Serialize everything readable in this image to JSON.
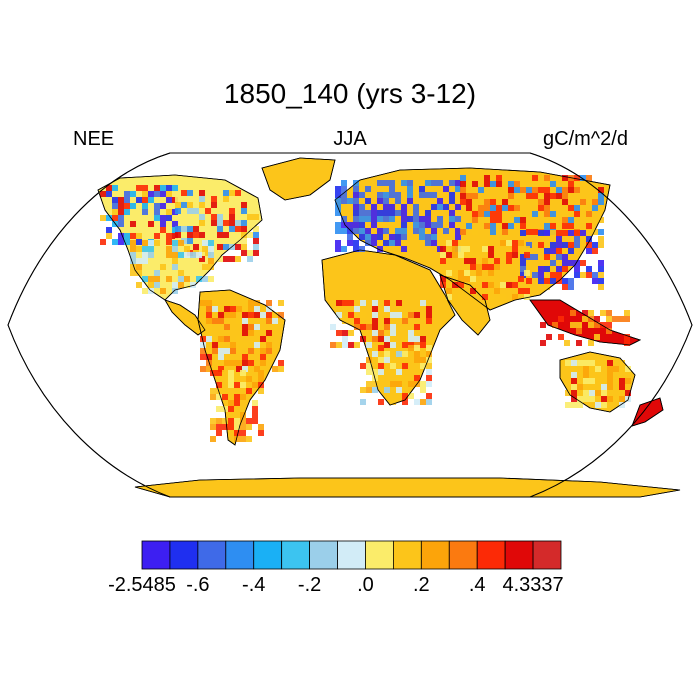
{
  "title": "1850_140 (yrs 3-12)",
  "left_label": "NEE",
  "center_label": "JJA",
  "right_label": "gC/m^2/d",
  "colorbar": {
    "colors": [
      "#3d1ff2",
      "#1f2ff0",
      "#3f6ae8",
      "#2e8ef2",
      "#1ab0f5",
      "#3cc4f0",
      "#9bcfea",
      "#d2ecf7",
      "#fbec6a",
      "#fcc51a",
      "#fca40a",
      "#fb7a10",
      "#fc2a06",
      "#e00808",
      "#d42a2a"
    ],
    "ticks": [
      {
        "label": "-2.5485",
        "boundary": 0
      },
      {
        "label": "-.6",
        "boundary": 2
      },
      {
        "label": "-.4",
        "boundary": 4
      },
      {
        "label": "-.2",
        "boundary": 6
      },
      {
        "label": ".0",
        "boundary": 8
      },
      {
        "label": ".2",
        "boundary": 10
      },
      {
        "label": ".4",
        "boundary": 12
      },
      {
        "label": "4.3337",
        "boundary": 14
      }
    ]
  },
  "map": {
    "projection": "Robinson",
    "ocean_color": "#ffffff",
    "coast_color": "#000000"
  }
}
